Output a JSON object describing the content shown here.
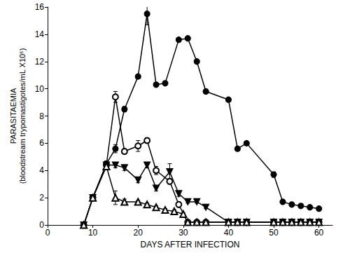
{
  "chart_data": {
    "type": "line",
    "xlabel": "DAYS AFTER INFECTION",
    "ylabel": [
      "PARASITAEMIA",
      "(bloodstream trypomastigotes/mL X10⁶)"
    ],
    "xlim": [
      0,
      63
    ],
    "xticks": [
      0,
      10,
      20,
      30,
      40,
      50,
      60
    ],
    "ylim": [
      0,
      16
    ],
    "yticks": [
      0,
      2,
      4,
      6,
      8,
      10,
      12,
      14,
      16
    ],
    "grid": false,
    "series": [
      {
        "marker": "circle",
        "color": "#000000",
        "x": [
          8,
          10,
          13,
          15,
          17,
          20,
          22,
          24,
          26,
          29,
          31,
          33,
          35,
          40,
          42,
          44,
          50,
          52,
          54,
          56,
          58,
          60
        ],
        "values": [
          0,
          2.0,
          4.5,
          5.6,
          8.5,
          10.9,
          15.5,
          10.3,
          10.4,
          13.6,
          13.7,
          12.0,
          9.8,
          9.2,
          5.6,
          6.0,
          3.7,
          1.7,
          1.5,
          1.4,
          1.3,
          1.2
        ],
        "errors": [
          0,
          0.1,
          0.2,
          0.3,
          0.2,
          0.1,
          0.8,
          0.1,
          0.1,
          0.1,
          0.1,
          0.1,
          0.1,
          0.1,
          0.1,
          0.1,
          0.2,
          0.1,
          0.1,
          0.1,
          0.1,
          0.1
        ]
      },
      {
        "marker": "open_circle",
        "color": "#000000",
        "x": [
          8,
          10,
          13,
          15,
          17,
          20,
          22,
          24,
          27,
          29,
          31,
          33,
          35,
          40,
          42,
          44,
          50,
          52,
          54,
          56,
          58,
          60
        ],
        "values": [
          0,
          2.0,
          4.4,
          9.4,
          5.4,
          5.8,
          6.2,
          4.0,
          3.2,
          1.5,
          0.2,
          0.2,
          0.2,
          0.2,
          0.2,
          0.2,
          0.2,
          0.2,
          0.2,
          0.2,
          0.2,
          0.2
        ],
        "errors": [
          0,
          0.1,
          0.2,
          0.4,
          0.2,
          0.4,
          0.2,
          0.3,
          0.2,
          0.1,
          0.1,
          0.1,
          0.1,
          0.1,
          0.1,
          0.1,
          0.1,
          0.1,
          0.1,
          0.1,
          0.1,
          0.1
        ]
      },
      {
        "marker": "triangle_down",
        "color": "#000000",
        "x": [
          8,
          10,
          13,
          15,
          17,
          20,
          22,
          24,
          27,
          29,
          31,
          33,
          35,
          40,
          42,
          44,
          50,
          52,
          54,
          56,
          58,
          60
        ],
        "values": [
          0,
          2.0,
          4.4,
          4.4,
          4.2,
          3.3,
          4.4,
          2.7,
          3.9,
          2.3,
          1.7,
          1.7,
          1.3,
          0.2,
          0.2,
          0.2,
          0.2,
          0.2,
          0.2,
          0.2,
          0.2,
          0.2
        ],
        "errors": [
          0,
          0.1,
          0.2,
          0.2,
          0.2,
          0.2,
          0.2,
          0.2,
          0.6,
          0.2,
          0.1,
          0.1,
          0.1,
          0.1,
          0.1,
          0.1,
          0.1,
          0.1,
          0.1,
          0.1,
          0.1,
          0.1
        ]
      },
      {
        "marker": "open_triangle",
        "color": "#000000",
        "x": [
          8,
          10,
          13,
          15,
          17,
          20,
          22,
          24,
          26,
          28,
          30,
          31,
          33,
          35,
          40,
          42,
          44,
          50,
          52,
          54,
          56,
          58,
          60
        ],
        "values": [
          0,
          2.0,
          4.3,
          2.0,
          1.7,
          1.7,
          1.5,
          1.3,
          1.1,
          1.0,
          0.8,
          0.2,
          0.2,
          0.2,
          0.2,
          0.2,
          0.2,
          0.2,
          0.2,
          0.2,
          0.2,
          0.2,
          0.2
        ],
        "errors": [
          0,
          0.1,
          0.2,
          0.5,
          0.2,
          0.1,
          0.1,
          0.1,
          0.1,
          0.1,
          0.1,
          0.1,
          0.1,
          0.1,
          0.1,
          0.1,
          0.1,
          0.1,
          0.1,
          0.1,
          0.1,
          0.1,
          0.1
        ]
      }
    ]
  }
}
